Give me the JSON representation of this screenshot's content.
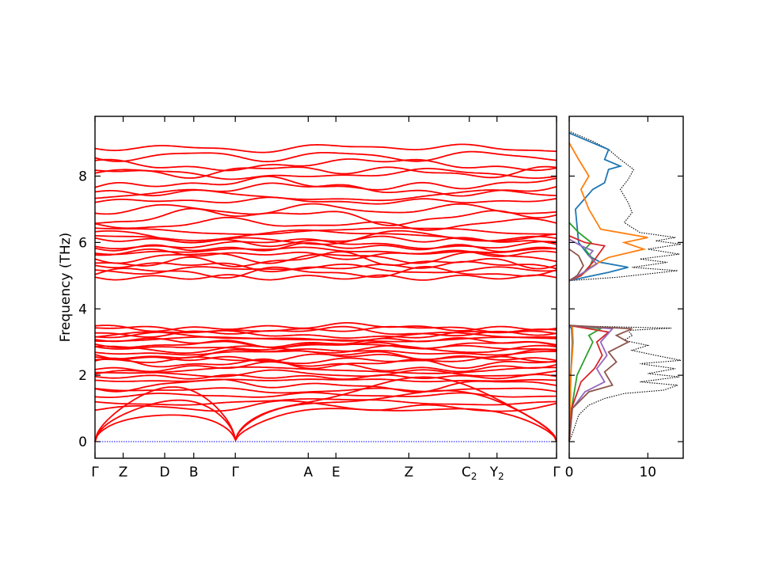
{
  "chart_data": [
    {
      "type": "line",
      "title": "",
      "ylabel": "Frequency (THz)",
      "xlabel": "",
      "ylim": [
        -0.5,
        9.8
      ],
      "yticks": [
        0,
        2,
        4,
        6,
        8
      ],
      "kpoints": [
        {
          "label": "Γ",
          "sub": "",
          "x": 0.0
        },
        {
          "label": "Z",
          "sub": "",
          "x": 0.061
        },
        {
          "label": "D",
          "sub": "",
          "x": 0.151
        },
        {
          "label": "B",
          "sub": "",
          "x": 0.214
        },
        {
          "label": "Γ",
          "sub": "",
          "x": 0.304
        },
        {
          "label": "A",
          "sub": "",
          "x": 0.462
        },
        {
          "label": "E",
          "sub": "",
          "x": 0.522
        },
        {
          "label": "Z",
          "sub": "",
          "x": 0.68
        },
        {
          "label": "C",
          "sub": "2",
          "x": 0.811
        },
        {
          "label": "Y",
          "sub": "2",
          "x": 0.871
        },
        {
          "label": "Γ",
          "sub": "",
          "x": 1.0
        }
      ],
      "band_color": "#ff0000",
      "zero_line_color": "#0000ff",
      "acoustic_max": [
        1.1,
        1.5,
        1.75
      ],
      "optical_low_bands": [
        1.05,
        1.2,
        1.4,
        1.55,
        1.7,
        1.85,
        1.95,
        2.05,
        2.15,
        2.25,
        2.35,
        2.45,
        2.55,
        2.62,
        2.7,
        2.78,
        2.86,
        2.92,
        3.0,
        3.08,
        3.15,
        3.22,
        3.3,
        3.38,
        3.45
      ],
      "optical_high_bands": [
        4.95,
        5.1,
        5.2,
        5.28,
        5.45,
        5.55,
        5.65,
        5.75,
        5.85,
        5.95,
        6.05,
        6.12,
        6.22,
        6.35,
        6.55,
        6.8,
        7.0,
        7.25,
        7.4,
        7.6,
        7.75,
        8.05,
        8.15,
        8.35,
        8.6,
        8.85
      ]
    },
    {
      "type": "line",
      "title": "",
      "xlabel": "",
      "ylabel": "",
      "xlim": [
        0,
        14.5
      ],
      "ylim": [
        -0.5,
        9.8
      ],
      "xticks": [
        0,
        10
      ],
      "series": [
        {
          "color": "#000000",
          "style": "dotted",
          "low": [
            [
              0,
              0
            ],
            [
              0.5,
              0.3
            ],
            [
              1.2,
              0.8
            ],
            [
              2.5,
              1.1
            ],
            [
              4.5,
              1.3
            ],
            [
              7.0,
              1.45
            ],
            [
              12.0,
              1.55
            ],
            [
              13.8,
              1.7
            ],
            [
              9,
              1.8
            ],
            [
              14,
              1.95
            ],
            [
              10,
              2.05
            ],
            [
              13.5,
              2.2
            ],
            [
              9,
              2.35
            ],
            [
              14.2,
              2.45
            ],
            [
              11,
              2.6
            ],
            [
              8,
              2.75
            ],
            [
              10,
              2.9
            ],
            [
              7,
              3.05
            ],
            [
              8,
              3.2
            ],
            [
              7.5,
              3.35
            ],
            [
              13,
              3.42
            ],
            [
              2,
              3.48
            ],
            [
              0,
              3.5
            ]
          ],
          "high": [
            [
              0,
              4.85
            ],
            [
              6,
              4.95
            ],
            [
              13.8,
              5.15
            ],
            [
              8,
              5.25
            ],
            [
              12.5,
              5.4
            ],
            [
              9,
              5.5
            ],
            [
              14,
              5.65
            ],
            [
              10,
              5.8
            ],
            [
              14.2,
              5.95
            ],
            [
              11,
              6.05
            ],
            [
              13.5,
              6.15
            ],
            [
              9,
              6.3
            ],
            [
              7,
              6.6
            ],
            [
              8,
              6.9
            ],
            [
              7.5,
              7.2
            ],
            [
              7,
              7.4
            ],
            [
              6.5,
              7.6
            ],
            [
              7.5,
              7.9
            ],
            [
              8.2,
              8.2
            ],
            [
              6.5,
              8.5
            ],
            [
              5,
              8.8
            ],
            [
              3,
              9.05
            ],
            [
              1,
              9.25
            ],
            [
              0,
              9.35
            ]
          ]
        },
        {
          "color": "#1f77b4",
          "style": "solid",
          "low": [
            [
              0,
              0
            ],
            [
              0.1,
              1.0
            ],
            [
              0.2,
              2.0
            ],
            [
              0.4,
              3.0
            ],
            [
              0.3,
              3.4
            ],
            [
              0,
              3.5
            ]
          ],
          "high": [
            [
              0,
              4.85
            ],
            [
              2,
              4.95
            ],
            [
              5,
              5.1
            ],
            [
              7.5,
              5.25
            ],
            [
              4,
              5.4
            ],
            [
              2.5,
              5.6
            ],
            [
              1.2,
              6.0
            ],
            [
              0.8,
              7.0
            ],
            [
              3,
              7.6
            ],
            [
              4.5,
              7.8
            ],
            [
              5,
              8.2
            ],
            [
              6.5,
              8.3
            ],
            [
              4.5,
              8.5
            ],
            [
              5,
              8.8
            ],
            [
              3,
              9.0
            ],
            [
              1,
              9.2
            ],
            [
              0,
              9.3
            ]
          ]
        },
        {
          "color": "#ff7f0e",
          "style": "solid",
          "low": [
            [
              0,
              0
            ],
            [
              0.2,
              2.0
            ],
            [
              0.5,
              3.0
            ],
            [
              0.4,
              3.45
            ],
            [
              0,
              3.5
            ]
          ],
          "high": [
            [
              0,
              4.85
            ],
            [
              1.5,
              5.0
            ],
            [
              3,
              5.3
            ],
            [
              5,
              5.55
            ],
            [
              9.5,
              5.8
            ],
            [
              7,
              6.0
            ],
            [
              10,
              6.15
            ],
            [
              4,
              6.4
            ],
            [
              2.5,
              7.0
            ],
            [
              1.5,
              7.6
            ],
            [
              2.5,
              8.0
            ],
            [
              1.2,
              8.5
            ],
            [
              0,
              9.0
            ]
          ]
        },
        {
          "color": "#2ca02c",
          "style": "solid",
          "low": [
            [
              0,
              0
            ],
            [
              0.3,
              1.0
            ],
            [
              1.0,
              2.0
            ],
            [
              2.2,
              2.6
            ],
            [
              3,
              3.0
            ],
            [
              2.5,
              3.2
            ],
            [
              4,
              3.4
            ],
            [
              0,
              3.5
            ]
          ],
          "high": [
            [
              0,
              4.85
            ],
            [
              1.2,
              5.0
            ],
            [
              2.5,
              5.2
            ],
            [
              3,
              5.5
            ],
            [
              2,
              5.8
            ],
            [
              2.8,
              6.0
            ],
            [
              1.2,
              6.3
            ],
            [
              0,
              6.6
            ]
          ]
        },
        {
          "color": "#d62728",
          "style": "solid",
          "low": [
            [
              0,
              0
            ],
            [
              0.3,
              1.0
            ],
            [
              1.5,
              1.8
            ],
            [
              3.2,
              2.2
            ],
            [
              4.2,
              2.6
            ],
            [
              3.5,
              3.0
            ],
            [
              5,
              3.3
            ],
            [
              0,
              3.5
            ]
          ],
          "high": [
            [
              0,
              4.85
            ],
            [
              1.5,
              5.0
            ],
            [
              3,
              5.4
            ],
            [
              4.5,
              5.9
            ],
            [
              2,
              6.0
            ],
            [
              0,
              6.2
            ]
          ]
        },
        {
          "color": "#9467bd",
          "style": "solid",
          "low": [
            [
              0,
              0
            ],
            [
              0.4,
              1.0
            ],
            [
              2.0,
              1.5
            ],
            [
              4.5,
              1.8
            ],
            [
              3.5,
              2.2
            ],
            [
              4.8,
              2.6
            ],
            [
              4,
              3.0
            ],
            [
              5.5,
              3.4
            ],
            [
              0,
              3.5
            ]
          ],
          "high": [
            [
              0,
              4.85
            ],
            [
              1.5,
              5.05
            ],
            [
              3.5,
              5.35
            ],
            [
              2.5,
              5.6
            ],
            [
              3,
              5.75
            ],
            [
              1.5,
              5.9
            ],
            [
              0,
              6.1
            ]
          ]
        },
        {
          "color": "#8c564b",
          "style": "solid",
          "low": [
            [
              0,
              0
            ],
            [
              0.4,
              1.0
            ],
            [
              2.5,
              1.5
            ],
            [
              5.5,
              1.7
            ],
            [
              4.5,
              2.1
            ],
            [
              6,
              2.4
            ],
            [
              5,
              2.7
            ],
            [
              7.5,
              3.0
            ],
            [
              6,
              3.2
            ],
            [
              8,
              3.4
            ],
            [
              0,
              3.5
            ]
          ],
          "high": [
            [
              0,
              4.85
            ],
            [
              1,
              5.0
            ],
            [
              1.8,
              5.3
            ],
            [
              1.2,
              5.6
            ],
            [
              0,
              5.8
            ]
          ]
        }
      ]
    }
  ]
}
